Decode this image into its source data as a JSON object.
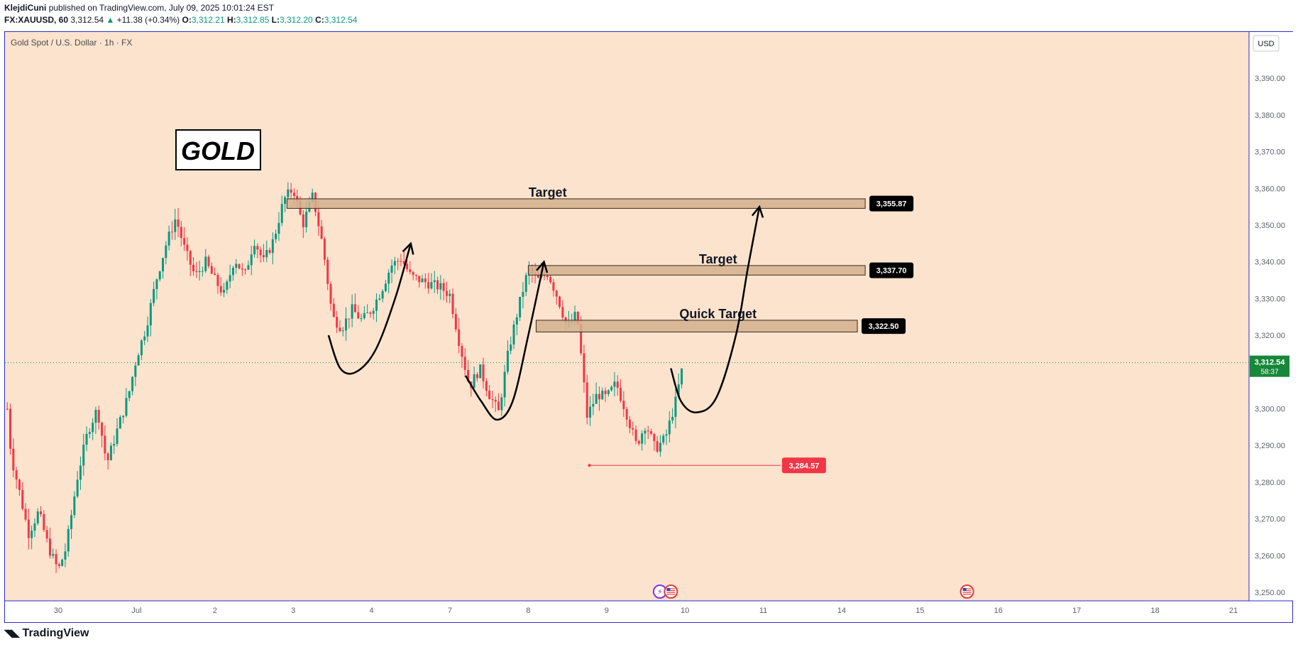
{
  "header": {
    "author": "KlejdiCuni",
    "published": "published on TradingView.com, July 09, 2025 10:01:24 EST",
    "symbol": "FX:XAUUSD, 60",
    "price": "3,312.54",
    "change": "+11.38 (+0.34%)",
    "open_label": "O:",
    "open": "3,312.21",
    "high_label": "H:",
    "high": "3,312.85",
    "low_label": "L:",
    "low": "3,312.20",
    "close_label": "C:",
    "close": "3,312.54"
  },
  "footer": {
    "brand": "TradingView",
    "logo_icon": "tradingview-logo-icon"
  },
  "chart_data": {
    "type": "candlestick",
    "title": "Gold Spot / U.S. Dollar · 1h · FX",
    "currency": "USD",
    "ylim": [
      3245,
      3400
    ],
    "y_ticks": [
      3250,
      3260,
      3270,
      3280,
      3290,
      3300,
      3310,
      3320,
      3330,
      3340,
      3350,
      3360,
      3370,
      3380,
      3390
    ],
    "y_tick_labels": [
      "3,250.00",
      "3,260.00",
      "3,270.00",
      "3,280.00",
      "3,290.00",
      "3,300.00",
      "3,310.00",
      "3,320.00",
      "3,330.00",
      "3,340.00",
      "3,350.00",
      "3,360.00",
      "3,370.00",
      "3,380.00",
      "3,390.00"
    ],
    "x_ticks": [
      {
        "label": "30",
        "day": 0
      },
      {
        "label": "Jul",
        "day": 1
      },
      {
        "label": "2",
        "day": 2
      },
      {
        "label": "3",
        "day": 3
      },
      {
        "label": "4",
        "day": 4
      },
      {
        "label": "7",
        "day": 5
      },
      {
        "label": "8",
        "day": 6
      },
      {
        "label": "9",
        "day": 7
      },
      {
        "label": "10",
        "day": 8
      },
      {
        "label": "11",
        "day": 9
      },
      {
        "label": "14",
        "day": 10
      },
      {
        "label": "15",
        "day": 11
      },
      {
        "label": "16",
        "day": 12
      },
      {
        "label": "17",
        "day": 13
      },
      {
        "label": "18",
        "day": 14
      },
      {
        "label": "21",
        "day": 15
      }
    ],
    "current_price": {
      "value": 3312.54,
      "label": "3,312.54",
      "countdown": "58:37"
    },
    "price_path": [
      [
        -0.65,
        3300
      ],
      [
        -0.6,
        3287
      ],
      [
        -0.5,
        3278
      ],
      [
        -0.38,
        3266
      ],
      [
        -0.25,
        3272
      ],
      [
        -0.12,
        3262
      ],
      [
        0.0,
        3256
      ],
      [
        0.1,
        3262
      ],
      [
        0.25,
        3282
      ],
      [
        0.38,
        3294
      ],
      [
        0.5,
        3300
      ],
      [
        0.62,
        3285
      ],
      [
        0.75,
        3294
      ],
      [
        0.9,
        3304
      ],
      [
        1.0,
        3314
      ],
      [
        1.12,
        3322
      ],
      [
        1.25,
        3335
      ],
      [
        1.38,
        3345
      ],
      [
        1.5,
        3352
      ],
      [
        1.62,
        3343
      ],
      [
        1.75,
        3336
      ],
      [
        1.88,
        3340
      ],
      [
        2.0,
        3335
      ],
      [
        2.12,
        3331
      ],
      [
        2.25,
        3341
      ],
      [
        2.38,
        3336
      ],
      [
        2.5,
        3346
      ],
      [
        2.62,
        3340
      ],
      [
        2.75,
        3346
      ],
      [
        2.88,
        3357
      ],
      [
        3.0,
        3360
      ],
      [
        3.12,
        3350
      ],
      [
        3.25,
        3358
      ],
      [
        3.38,
        3344
      ],
      [
        3.5,
        3325
      ],
      [
        3.62,
        3322
      ],
      [
        3.75,
        3327
      ],
      [
        3.88,
        3324
      ],
      [
        4.0,
        3327
      ],
      [
        4.12,
        3332
      ],
      [
        4.25,
        3339
      ],
      [
        4.38,
        3341
      ],
      [
        4.5,
        3336
      ],
      [
        4.62,
        3335
      ],
      [
        4.75,
        3334
      ],
      [
        4.88,
        3333
      ],
      [
        5.0,
        3331
      ],
      [
        5.12,
        3318
      ],
      [
        5.25,
        3306
      ],
      [
        5.38,
        3311
      ],
      [
        5.5,
        3304
      ],
      [
        5.62,
        3299
      ],
      [
        5.75,
        3316
      ],
      [
        5.88,
        3328
      ],
      [
        6.0,
        3338
      ],
      [
        6.12,
        3335
      ],
      [
        6.25,
        3337
      ],
      [
        6.38,
        3330
      ],
      [
        6.5,
        3322
      ],
      [
        6.62,
        3326
      ],
      [
        6.75,
        3298
      ],
      [
        6.88,
        3304
      ],
      [
        7.0,
        3303
      ],
      [
        7.12,
        3307
      ],
      [
        7.25,
        3299
      ],
      [
        7.38,
        3290
      ],
      [
        7.5,
        3296
      ],
      [
        7.62,
        3289
      ],
      [
        7.75,
        3292
      ],
      [
        7.88,
        3302
      ],
      [
        7.98,
        3312.54
      ]
    ],
    "zones": [
      {
        "label": "Target",
        "value": 3355.87,
        "value_label": "3,355.87",
        "from_day": 2.92,
        "to_day": 10.3,
        "half_height": 1.3
      },
      {
        "label": "Target",
        "value": 3337.7,
        "value_label": "3,337.70",
        "from_day": 6.0,
        "to_day": 10.3,
        "half_height": 1.3
      },
      {
        "label": "Quick Target",
        "value": 3322.5,
        "value_label": "3,322.50",
        "from_day": 6.1,
        "to_day": 10.2,
        "half_height": 1.6
      }
    ],
    "support": {
      "value": 3284.57,
      "value_label": "3,284.57",
      "from_day": 6.78,
      "to_day": 9.8
    },
    "annotation_text": "GOLD",
    "drawings": [
      {
        "name": "projection-curve-1",
        "points": [
          [
            3.45,
            3320
          ],
          [
            3.6,
            3311
          ],
          [
            3.8,
            3310
          ],
          [
            4.05,
            3316
          ],
          [
            4.3,
            3330
          ],
          [
            4.5,
            3345
          ]
        ]
      },
      {
        "name": "projection-curve-2",
        "points": [
          [
            5.2,
            3309
          ],
          [
            5.4,
            3302
          ],
          [
            5.6,
            3297
          ],
          [
            5.8,
            3302
          ],
          [
            6.0,
            3320
          ],
          [
            6.2,
            3340
          ]
        ]
      },
      {
        "name": "projection-curve-3",
        "points": [
          [
            7.82,
            3311
          ],
          [
            7.95,
            3302
          ],
          [
            8.15,
            3299
          ],
          [
            8.4,
            3303
          ],
          [
            8.65,
            3320
          ],
          [
            8.8,
            3338
          ],
          [
            8.95,
            3355
          ]
        ]
      }
    ],
    "event_icons": [
      {
        "name": "lightning-event-icon",
        "day": 7.68
      },
      {
        "name": "us-flag-event-icon",
        "day": 7.82
      },
      {
        "name": "us-flag-event-icon",
        "day": 11.6
      }
    ],
    "colors": {
      "background": "#fbe3ce",
      "up": "#089981",
      "down": "#f23645",
      "zone_fill": "#d2b08e",
      "label_bg": "#000000",
      "support": "#f23645",
      "current": "#17873a"
    }
  }
}
